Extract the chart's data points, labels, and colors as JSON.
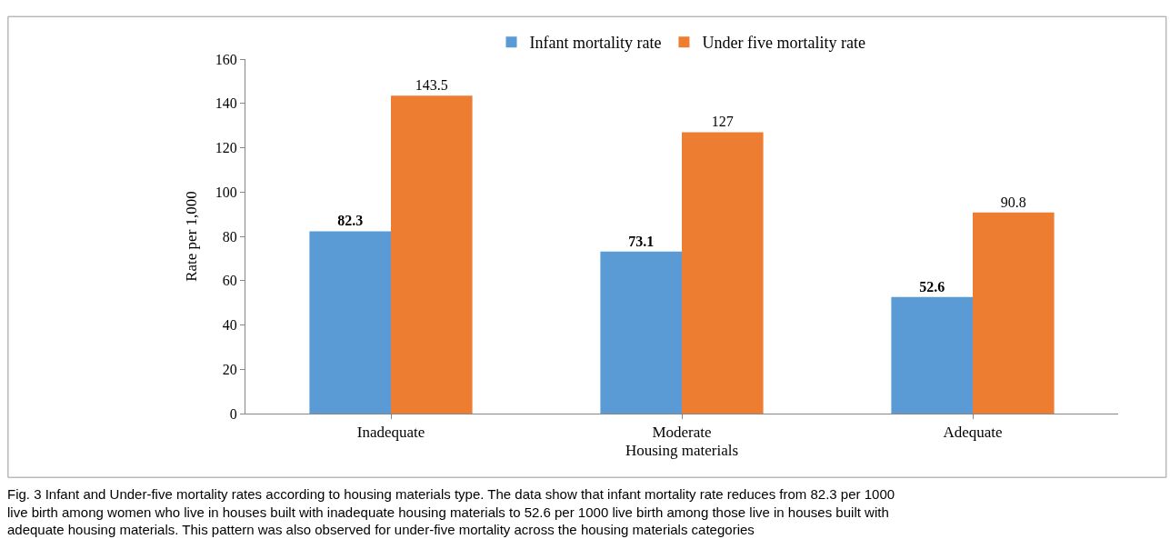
{
  "chart_data": {
    "type": "bar",
    "xlabel": "Housing materials",
    "ylabel": "Rate per 1,000",
    "categories": [
      "Inadequate",
      "Moderate",
      "Adequate"
    ],
    "series": [
      {
        "name": "Infant mortality rate",
        "color": "#5b9bd5",
        "values": [
          82.3,
          73.1,
          52.6
        ]
      },
      {
        "name": "Under five mortality rate",
        "color": "#ed7d31",
        "values": [
          143.5,
          127,
          90.8
        ]
      }
    ],
    "ylim": [
      0,
      160
    ],
    "yticks": [
      0,
      20,
      40,
      60,
      80,
      100,
      120,
      140,
      160
    ],
    "data_labels": true,
    "legend": "top",
    "annotations": [
      "Fig. 3 Infant and Under-five mortality rates according to housing materials type. The data show that infant mortality rate reduces from 82.3 per 1000 live birth among women who live in houses built with inadequate housing materials to 52.6 per 1000 live birth among those live in houses built with adequate housing materials. This pattern was also observed for under-five mortality across the housing materials categories"
    ]
  }
}
